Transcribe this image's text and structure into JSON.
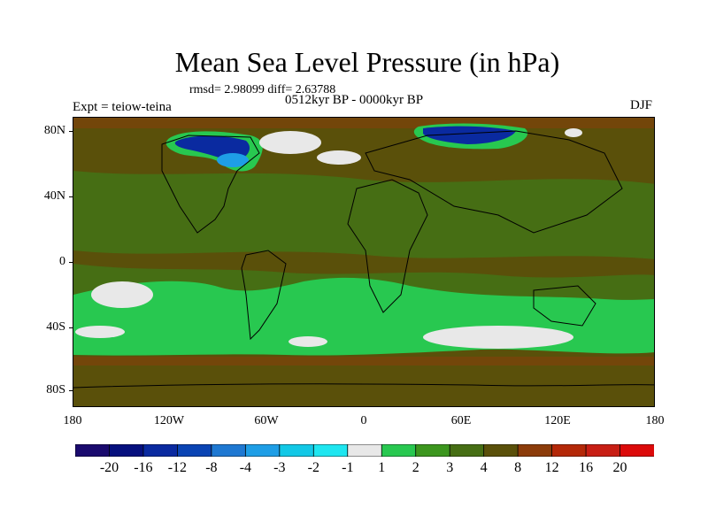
{
  "title": "Mean Sea Level Pressure (in hPa)",
  "stats": "rmsd= 2.98099 diff= 2.63788",
  "period": "0512kyr BP - 0000kyr BP",
  "experiment": "Expt = teiow-teina",
  "season": "DJF",
  "lat_labels": [
    "80N",
    "40N",
    "0",
    "40S",
    "80S"
  ],
  "lon_labels": [
    "180",
    "120W",
    "60W",
    "0",
    "60E",
    "120E",
    "180"
  ],
  "colorbar": {
    "labels": [
      "-20",
      "-16",
      "-12",
      "-8",
      "-4",
      "-3",
      "-2",
      "-1",
      "1",
      "2",
      "3",
      "4",
      "8",
      "12",
      "16",
      "20"
    ],
    "colors": [
      "#1a0a6e",
      "#06107e",
      "#0a2aa0",
      "#0a44b4",
      "#1e78d2",
      "#1e9ee6",
      "#12c8e6",
      "#1ee6f0",
      "#e8e8e8",
      "#28c850",
      "#3c961e",
      "#466e14",
      "#5a500a",
      "#8c3c0a",
      "#b42808",
      "#c81e14",
      "#dc0a0a"
    ]
  },
  "palette": {
    "background_brown": "#5a500a",
    "olive": "#466e14",
    "green": "#28c850",
    "white": "#e8e8e8",
    "blue_dark": "#0a2aa0",
    "blue_light": "#1e9ee6",
    "reddish": "#8c3c0a"
  }
}
